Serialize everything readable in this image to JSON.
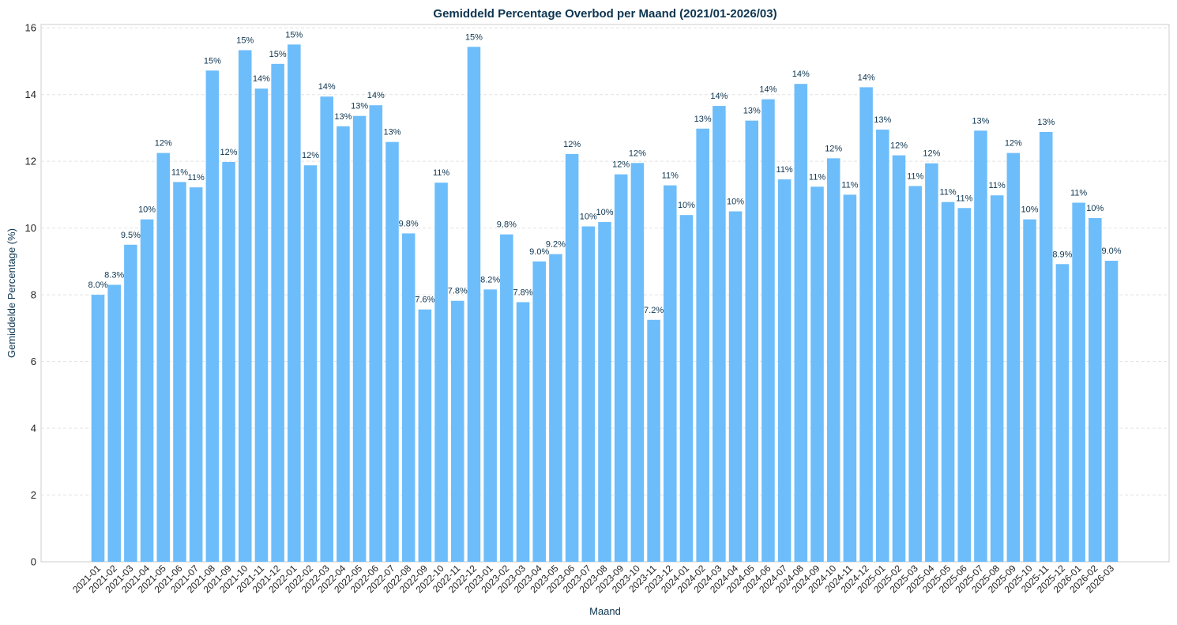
{
  "chart_data": {
    "type": "bar",
    "title": "Gemiddeld Percentage Overbod per Maand (2021/01-2026/03)",
    "xlabel": "Maand",
    "ylabel": "Gemiddelde Percentage (%)",
    "ylim": [
      0,
      16.1
    ],
    "yticks": [
      0,
      2,
      4,
      6,
      8,
      10,
      12,
      14,
      16
    ],
    "grid": true,
    "bar_color": "#6dbdfb",
    "categories": [
      "2021-01",
      "2021-02",
      "2021-03",
      "2021-04",
      "2021-05",
      "2021-06",
      "2021-07",
      "2021-08",
      "2021-09",
      "2021-10",
      "2021-11",
      "2021-12",
      "2022-01",
      "2022-02",
      "2022-03",
      "2022-04",
      "2022-05",
      "2022-06",
      "2022-07",
      "2022-08",
      "2022-09",
      "2022-10",
      "2022-11",
      "2022-12",
      "2023-01",
      "2023-02",
      "2023-03",
      "2023-04",
      "2023-05",
      "2023-06",
      "2023-07",
      "2023-08",
      "2023-09",
      "2023-10",
      "2023-11",
      "2023-12",
      "2024-01",
      "2024-02",
      "2024-03",
      "2024-04",
      "2024-05",
      "2024-06",
      "2024-07",
      "2024-08",
      "2024-09",
      "2024-10",
      "2024-11",
      "2024-12",
      "2025-01",
      "2025-02",
      "2025-03",
      "2025-04",
      "2025-05",
      "2025-06",
      "2025-07",
      "2025-08",
      "2025-09",
      "2025-10",
      "2025-11",
      "2025-12",
      "2026-01",
      "2026-02",
      "2026-03"
    ],
    "values": [
      8.0,
      8.3,
      9.5,
      10.26,
      12.25,
      11.38,
      11.22,
      14.72,
      11.98,
      15.33,
      14.18,
      14.92,
      15.5,
      11.88,
      13.94,
      13.05,
      13.36,
      13.68,
      12.58,
      9.84,
      7.56,
      11.36,
      7.82,
      15.43,
      8.16,
      9.81,
      7.78,
      9.0,
      9.22,
      12.22,
      10.05,
      10.18,
      11.61,
      11.95,
      7.25,
      11.28,
      10.39,
      12.98,
      13.66,
      10.5,
      13.22,
      13.86,
      11.46,
      14.32,
      11.24,
      12.09,
      11.0,
      14.22,
      12.95,
      12.18,
      11.26,
      11.94,
      10.78,
      10.6,
      12.92,
      10.98,
      12.25,
      10.26,
      12.88,
      8.92,
      10.76,
      10.3,
      9.02
    ],
    "data_labels": [
      "8.0%",
      "8.3%",
      "9.5%",
      "10%",
      "12%",
      "11%",
      "11%",
      "15%",
      "12%",
      "15%",
      "14%",
      "15%",
      "15%",
      "12%",
      "14%",
      "13%",
      "13%",
      "14%",
      "13%",
      "9.8%",
      "7.6%",
      "11%",
      "7.8%",
      "15%",
      "8.2%",
      "9.8%",
      "7.8%",
      "9.0%",
      "9.2%",
      "12%",
      "10%",
      "10%",
      "12%",
      "12%",
      "7.2%",
      "11%",
      "10%",
      "13%",
      "14%",
      "10%",
      "13%",
      "14%",
      "11%",
      "14%",
      "11%",
      "12%",
      "11%",
      "14%",
      "13%",
      "12%",
      "11%",
      "12%",
      "11%",
      "11%",
      "13%",
      "11%",
      "12%",
      "10%",
      "13%",
      "8.9%",
      "11%",
      "10%",
      "9.0%"
    ],
    "xticks": [
      "2021-01",
      "2021-02",
      "2021-03",
      "2021-04",
      "2021-05",
      "2021-06",
      "2021-07",
      "2021-08",
      "2021-09",
      "2021-10",
      "2021-11",
      "2021-12",
      "2022-01",
      "2022-02",
      "2022-03",
      "2022-04",
      "2022-05",
      "2022-06",
      "2022-07",
      "2022-08",
      "2022-09",
      "2022-10",
      "2022-11",
      "2022-12",
      "2023-01",
      "2023-02",
      "2023-03",
      "2023-04",
      "2023-05",
      "2023-06",
      "2023-07",
      "2023-08",
      "2023-09",
      "2023-10",
      "2023-11",
      "2023-12",
      "2024-01",
      "2024-02",
      "2024-03",
      "2024-04",
      "2024-05",
      "2024-06",
      "2024-07",
      "2024-08",
      "2024-09",
      "2024-10",
      "2024-11",
      "2024-12",
      "2025-01",
      "2025-02",
      "2025-03",
      "2025-04",
      "2025-05",
      "2025-06",
      "2025-07",
      "2025-08",
      "2025-09",
      "2025-10",
      "2025-11",
      "2025-12",
      "2026-01",
      "2026-02",
      "2026-03"
    ]
  }
}
